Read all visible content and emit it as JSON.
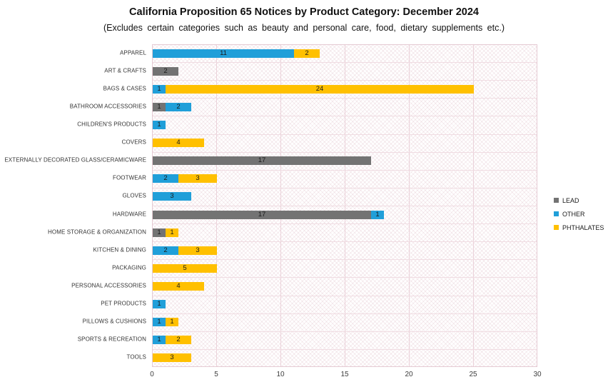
{
  "chart_data": {
    "type": "bar",
    "orientation": "horizontal",
    "stacked": true,
    "title": "California Proposition 65 Notices by Product Category: December 2024",
    "subtitle": "(Excludes certain categories such as beauty and personal care, food, dietary supplements etc.)",
    "categories": [
      "APPAREL",
      "ART & CRAFTS",
      "BAGS & CASES",
      "BATHROOM ACCESSORIES",
      "CHILDREN'S PRODUCTS",
      "COVERS",
      "EXTERNALLY DECORATED GLASS/CERAMICWARE",
      "FOOTWEAR",
      "GLOVES",
      "HARDWARE",
      "HOME STORAGE & ORGANIZATION",
      "KITCHEN & DINING",
      "PACKAGING",
      "PERSONAL ACCESSORIES",
      "PET PRODUCTS",
      "PILLOWS & CUSHIONS",
      "SPORTS & RECREATION",
      "TOOLS"
    ],
    "series": [
      {
        "name": "LEAD",
        "color": "#737373",
        "values": [
          0,
          2,
          0,
          1,
          0,
          0,
          17,
          0,
          0,
          17,
          1,
          0,
          0,
          0,
          0,
          0,
          0,
          0
        ]
      },
      {
        "name": "OTHER",
        "color": "#209FD9",
        "values": [
          11,
          0,
          1,
          2,
          1,
          0,
          0,
          2,
          3,
          1,
          0,
          2,
          0,
          0,
          1,
          1,
          1,
          0
        ]
      },
      {
        "name": "PHTHALATES",
        "color": "#FFC000",
        "values": [
          2,
          0,
          24,
          0,
          0,
          4,
          0,
          3,
          0,
          0,
          1,
          3,
          5,
          4,
          0,
          1,
          2,
          3
        ]
      }
    ],
    "xlim": [
      0,
      30
    ],
    "xticks": [
      0,
      5,
      10,
      15,
      20,
      25,
      30
    ],
    "grid": true,
    "data_labels": true,
    "legend_position": "right",
    "colors": {
      "plot_border": "#E5CAD3",
      "gridline": "#EBD2DA",
      "hatch": "#EAD3DB",
      "background": "#FFFFFF"
    }
  }
}
